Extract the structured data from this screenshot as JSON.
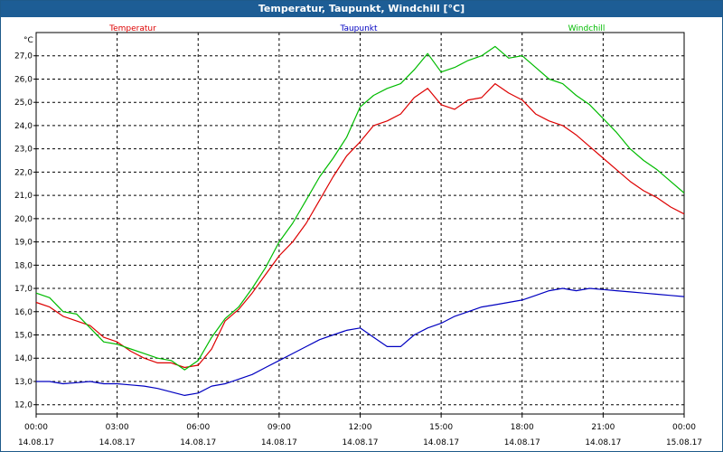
{
  "window": {
    "title": "Temperatur, Taupunkt, Windchill [°C]"
  },
  "chart_data": {
    "type": "line",
    "title": "Temperatur, Taupunkt, Windchill [°C]",
    "ylabel": "°C",
    "ylim": [
      11.6,
      28.0
    ],
    "y_ticks": [
      "12,0",
      "13,0",
      "14,0",
      "15,0",
      "16,0",
      "17,0",
      "18,0",
      "19,0",
      "20,0",
      "21,0",
      "22,0",
      "23,0",
      "24,0",
      "25,0",
      "26,0",
      "27,0"
    ],
    "x_ticks": [
      {
        "time": "00:00",
        "date": "14.08.17"
      },
      {
        "time": "03:00",
        "date": "14.08.17"
      },
      {
        "time": "06:00",
        "date": "14.08.17"
      },
      {
        "time": "09:00",
        "date": "14.08.17"
      },
      {
        "time": "12:00",
        "date": "14.08.17"
      },
      {
        "time": "15:00",
        "date": "14.08.17"
      },
      {
        "time": "18:00",
        "date": "14.08.17"
      },
      {
        "time": "21:00",
        "date": "14.08.17"
      },
      {
        "time": "00:00",
        "date": "15.08.17"
      }
    ],
    "xlim_hours": [
      0,
      24
    ],
    "grid": true,
    "legend_position": "top",
    "x": [
      0,
      0.5,
      1,
      1.5,
      2,
      2.5,
      3,
      3.5,
      4,
      4.5,
      5,
      5.5,
      6,
      6.5,
      7,
      7.5,
      8,
      8.5,
      9,
      9.5,
      10,
      10.5,
      11,
      11.5,
      12,
      12.5,
      13,
      13.5,
      14,
      14.5,
      15,
      15.5,
      16,
      16.5,
      17,
      17.5,
      18,
      18.5,
      19,
      19.5,
      20,
      20.5,
      21,
      21.5,
      22,
      22.5,
      23,
      23.5,
      24
    ],
    "series": [
      {
        "name": "Temperatur",
        "color": "#dd0000",
        "values": [
          16.4,
          16.2,
          15.8,
          15.6,
          15.4,
          14.9,
          14.7,
          14.3,
          14.0,
          13.8,
          13.8,
          13.6,
          13.7,
          14.4,
          15.6,
          16.1,
          16.8,
          17.6,
          18.4,
          19.0,
          19.8,
          20.8,
          21.8,
          22.7,
          23.3,
          24.0,
          24.2,
          24.5,
          25.2,
          25.6,
          24.9,
          24.7,
          25.1,
          25.2,
          25.8,
          25.4,
          25.1,
          24.5,
          24.2,
          24.0,
          23.6,
          23.1,
          22.6,
          22.1,
          21.6,
          21.2,
          20.9,
          20.5,
          20.2
        ]
      },
      {
        "name": "Taupunkt",
        "color": "#0000c0",
        "values": [
          13.0,
          13.0,
          12.9,
          12.95,
          13.0,
          12.9,
          12.9,
          12.85,
          12.8,
          12.7,
          12.55,
          12.4,
          12.5,
          12.8,
          12.9,
          13.1,
          13.3,
          13.6,
          13.9,
          14.2,
          14.5,
          14.8,
          15.0,
          15.2,
          15.3,
          14.9,
          14.5,
          14.5,
          15.0,
          15.3,
          15.5,
          15.8,
          16.0,
          16.2,
          16.3,
          16.4,
          16.5,
          16.7,
          16.9,
          17.0,
          16.9,
          17.0,
          16.95,
          16.9,
          16.85,
          16.8,
          16.75,
          16.7,
          16.65
        ]
      },
      {
        "name": "Windchill",
        "color": "#00bb00",
        "values": [
          16.8,
          16.6,
          16.0,
          15.9,
          15.3,
          14.7,
          14.6,
          14.4,
          14.2,
          14.0,
          13.9,
          13.5,
          13.9,
          14.9,
          15.7,
          16.2,
          17.0,
          17.9,
          19.0,
          19.8,
          20.8,
          21.8,
          22.6,
          23.5,
          24.8,
          25.3,
          25.6,
          25.8,
          26.4,
          27.1,
          26.3,
          26.5,
          26.8,
          27.0,
          27.4,
          26.9,
          27.0,
          26.5,
          26.0,
          25.8,
          25.3,
          24.9,
          24.3,
          23.7,
          23.0,
          22.5,
          22.1,
          21.6,
          21.1
        ]
      }
    ]
  }
}
